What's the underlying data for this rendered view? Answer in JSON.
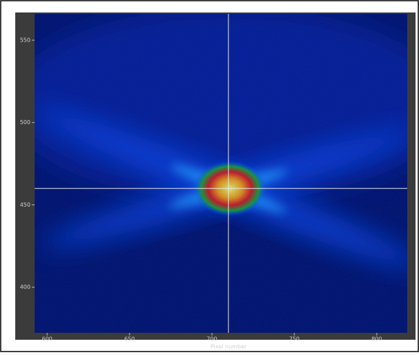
{
  "chart_data": {
    "type": "image",
    "x_label": "Pixel number",
    "xlim": [
      592.4,
      818.5
    ],
    "xticks": [
      600,
      650,
      700,
      750,
      800
    ],
    "ylim": [
      372.3,
      566
    ],
    "yticks": [
      400,
      450,
      500,
      550
    ],
    "crosshair": {
      "x": 710,
      "y": 460
    },
    "crosshair_color": "#e8e8e8"
  }
}
